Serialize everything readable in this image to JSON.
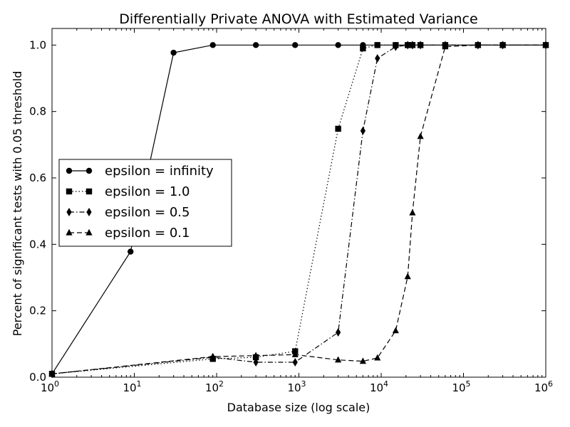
{
  "chart_data": {
    "type": "line",
    "title": "Differentially Private ANOVA with Estimated Variance",
    "xlabel": "Database size (log scale)",
    "ylabel": "Percent of significant tests with 0.05 threshold",
    "xscale": "log",
    "xlim": [
      1,
      1000000
    ],
    "ylim": [
      0.0,
      1.05
    ],
    "x_ticks": [
      {
        "base": "10",
        "exp": "0"
      },
      {
        "base": "10",
        "exp": "1"
      },
      {
        "base": "10",
        "exp": "2"
      },
      {
        "base": "10",
        "exp": "3"
      },
      {
        "base": "10",
        "exp": "4"
      },
      {
        "base": "10",
        "exp": "5"
      },
      {
        "base": "10",
        "exp": "6"
      }
    ],
    "y_ticks": [
      "0.0",
      "0.2",
      "0.4",
      "0.6",
      "0.8",
      "1.0"
    ],
    "y_tick_values": [
      0,
      0.2,
      0.4,
      0.6,
      0.8,
      1.0
    ],
    "grid": false,
    "legend_position": "center-left",
    "series": [
      {
        "name": "epsilon = infinity",
        "marker": "circle",
        "linestyle": "solid",
        "color": "#000000",
        "x": [
          1,
          9,
          30,
          90,
          300,
          900,
          3000,
          6000,
          9000,
          15000,
          21000,
          24000,
          30000,
          60000,
          150000,
          300000,
          1000000
        ],
        "y": [
          0.01,
          0.378,
          0.977,
          1.0,
          1.0,
          1.0,
          1.0,
          1.0,
          1.0,
          1.0,
          1.0,
          1.0,
          1.0,
          1.0,
          1.0,
          1.0,
          1.0
        ]
      },
      {
        "name": "epsilon = 1.0",
        "marker": "square",
        "linestyle": "dotted",
        "color": "#000000",
        "x": [
          1,
          90,
          300,
          900,
          3000,
          6000,
          9000,
          15000,
          21000,
          24000,
          30000,
          60000,
          150000,
          300000,
          1000000
        ],
        "y": [
          0.01,
          0.055,
          0.06,
          0.078,
          0.748,
          0.99,
          1.0,
          1.0,
          1.0,
          1.0,
          1.0,
          1.0,
          1.0,
          1.0,
          1.0
        ]
      },
      {
        "name": "epsilon = 0.5",
        "marker": "diamond",
        "linestyle": "dashdot",
        "color": "#000000",
        "x": [
          1,
          90,
          300,
          900,
          3000,
          6000,
          9000,
          15000,
          21000,
          24000,
          30000,
          60000,
          150000,
          300000,
          1000000
        ],
        "y": [
          0.01,
          0.06,
          0.045,
          0.045,
          0.135,
          0.742,
          0.96,
          0.995,
          1.0,
          1.0,
          1.0,
          1.0,
          1.0,
          1.0,
          1.0
        ]
      },
      {
        "name": "epsilon = 0.1",
        "marker": "triangle",
        "linestyle": "dashed",
        "color": "#000000",
        "x": [
          1,
          90,
          300,
          900,
          3000,
          6000,
          9000,
          15000,
          21000,
          24000,
          30000,
          60000,
          150000,
          300000,
          1000000
        ],
        "y": [
          0.01,
          0.062,
          0.065,
          0.068,
          0.052,
          0.048,
          0.058,
          0.14,
          0.303,
          0.495,
          0.725,
          0.995,
          1.0,
          1.0,
          1.0
        ]
      }
    ]
  }
}
